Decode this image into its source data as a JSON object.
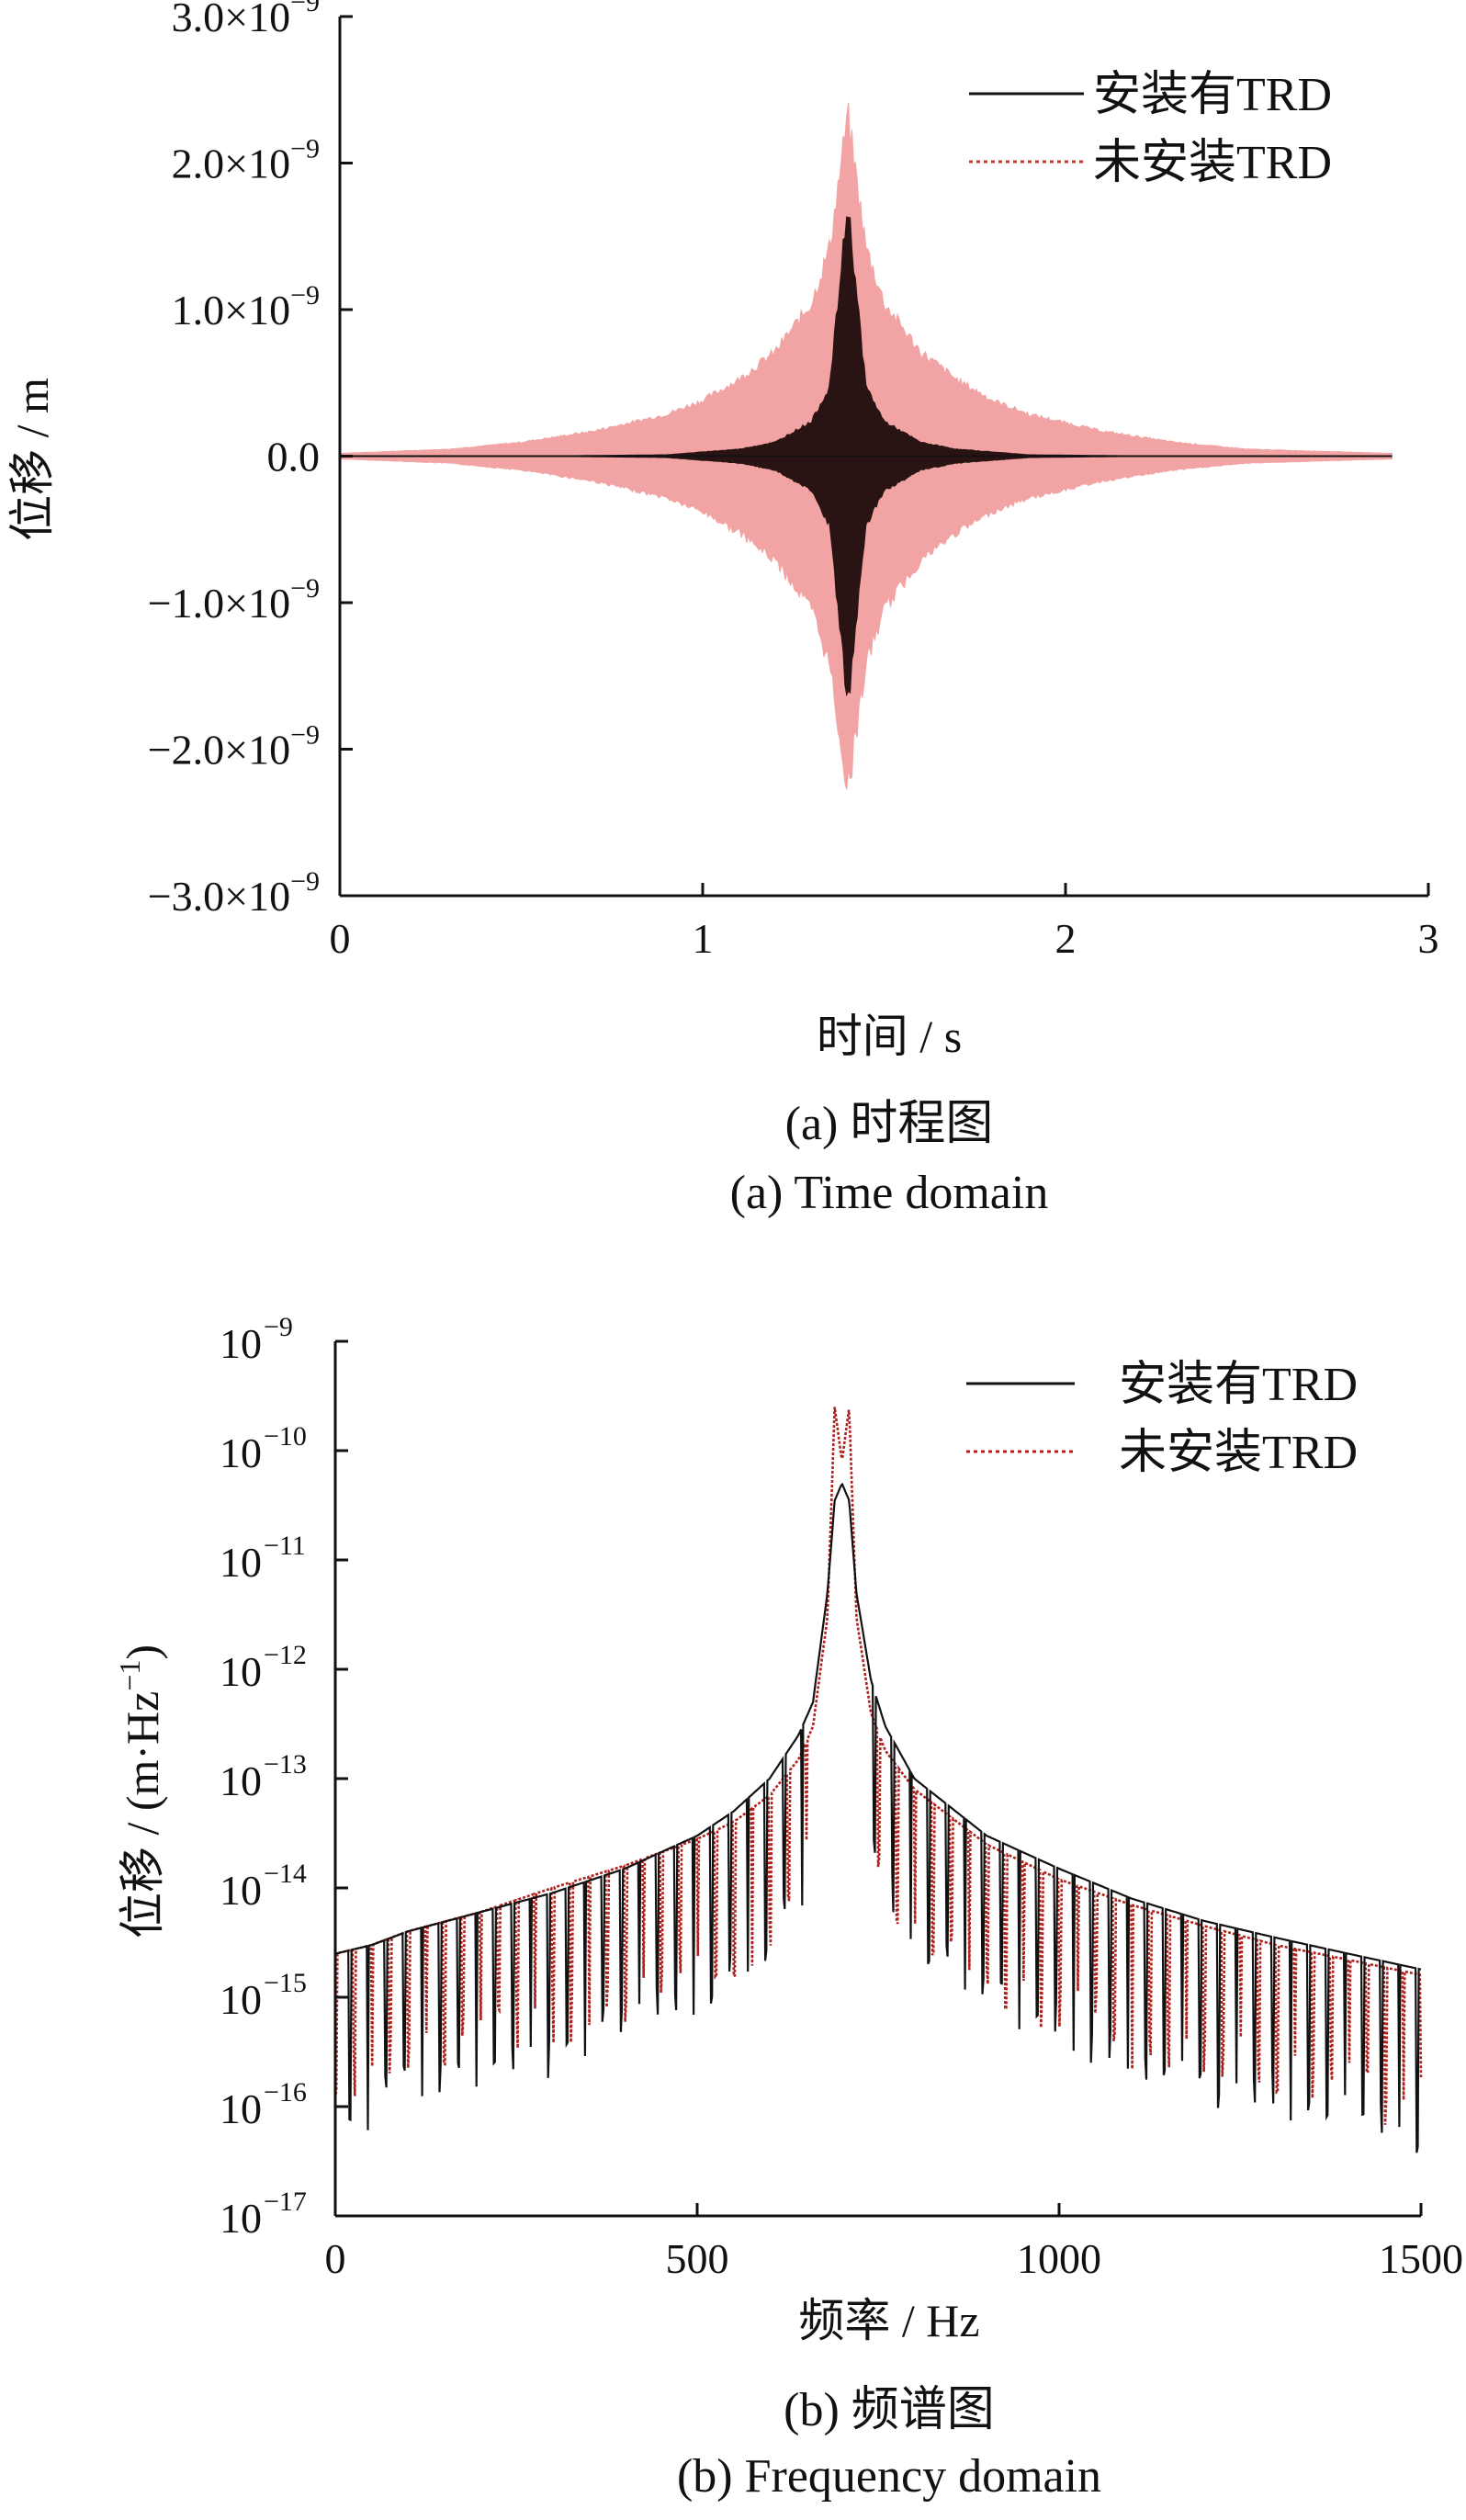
{
  "chart_data": [
    {
      "type": "line",
      "caption_cn": "(a)  时程图",
      "caption_en": "(a)  Time domain",
      "xlabel": "时间 / s",
      "ylabel": "位移 / m",
      "xlim": [
        0,
        3
      ],
      "ylim": [
        -3e-09,
        3e-09
      ],
      "x_ticks": [
        0,
        1,
        2,
        3
      ],
      "x_tick_labels": [
        "0",
        "1",
        "2",
        "3"
      ],
      "y_ticks": [
        3e-09,
        2e-09,
        1e-09,
        0,
        -1e-09,
        -2e-09,
        -3e-09
      ],
      "y_tick_labels": [
        "3.0×10",
        "2.0×10",
        "1.0×10",
        "0.0",
        "−1.0×10",
        "−2.0×10",
        "−3.0×10"
      ],
      "y_tick_exponents": [
        "−9",
        "−9",
        "−9",
        "",
        "−9",
        "−9",
        "−9"
      ],
      "legend_position": "top-right",
      "series": [
        {
          "name": "安装有TRD",
          "color": "#2a1413",
          "style": "solid",
          "envelope": {
            "x": [
              0.0,
              0.3,
              0.6,
              0.9,
              1.1,
              1.2,
              1.3,
              1.35,
              1.4,
              1.45,
              1.5,
              1.6,
              1.7,
              1.9,
              2.2,
              2.5,
              2.9
            ],
            "upper": [
              0.0,
              0.0,
              2e-12,
              1e-11,
              5e-11,
              1e-10,
              2.5e-10,
              5e-10,
              1.82e-09,
              5e-10,
              2.5e-10,
              1e-10,
              5e-11,
              1e-11,
              2e-12,
              0.0,
              0.0
            ],
            "lower": [
              0.0,
              0.0,
              -2e-12,
              -1e-11,
              -5e-11,
              -1e-10,
              -2.5e-10,
              -5e-10,
              -1.82e-09,
              -5e-10,
              -2.5e-10,
              -1e-10,
              -5e-11,
              -1e-11,
              -2e-12,
              0.0,
              0.0
            ]
          }
        },
        {
          "name": "未安装TRD",
          "color": "#f2a3a3",
          "style": "dotted",
          "envelope": {
            "x": [
              0.0,
              0.3,
              0.5,
              0.7,
              0.9,
              1.0,
              1.1,
              1.2,
              1.3,
              1.35,
              1.4,
              1.45,
              1.5,
              1.6,
              1.7,
              1.8,
              1.9,
              2.1,
              2.3,
              2.5,
              2.9
            ],
            "upper": [
              2e-11,
              5e-11,
              1e-10,
              1.8e-10,
              3e-10,
              4e-10,
              5.5e-10,
              7.5e-10,
              1.1e-09,
              1.5e-09,
              2.45e-09,
              1.5e-09,
              1.1e-09,
              7.5e-10,
              5.5e-10,
              4e-10,
              3e-10,
              1.8e-10,
              1e-10,
              5e-11,
              2e-11
            ],
            "lower": [
              -2e-11,
              -5e-11,
              -1e-10,
              -1.8e-10,
              -3e-10,
              -4e-10,
              -5.5e-10,
              -7.5e-10,
              -1.1e-09,
              -1.5e-09,
              -2.4e-09,
              -1.5e-09,
              -1.1e-09,
              -7.5e-10,
              -5.5e-10,
              -4e-10,
              -3e-10,
              -1.8e-10,
              -1e-10,
              -5e-11,
              -2e-11
            ]
          }
        }
      ]
    },
    {
      "type": "line",
      "yscale": "log",
      "caption_cn": "(b)  频谱图",
      "caption_en": "(b)  Frequency domain",
      "xlabel": "频率 / Hz",
      "ylabel": "位移 / (m·Hz",
      "ylabel_exponent": "−1",
      "ylabel_close": ")",
      "xlim": [
        0,
        1500
      ],
      "ylim": [
        1e-17,
        1e-09
      ],
      "x_ticks": [
        0,
        500,
        1000,
        1500
      ],
      "x_tick_labels": [
        "0",
        "500",
        "1000",
        "1500"
      ],
      "y_ticks": [
        1e-09,
        1e-10,
        1e-11,
        1e-12,
        1e-13,
        1e-14,
        1e-15,
        1e-16,
        1e-17
      ],
      "y_tick_labels": [
        "10",
        "10",
        "10",
        "10",
        "10",
        "10",
        "10",
        "10",
        "10"
      ],
      "y_tick_exponents": [
        "−9",
        "−10",
        "−11",
        "−12",
        "−13",
        "−14",
        "−15",
        "−16",
        "−17"
      ],
      "legend_position": "top-right",
      "series": [
        {
          "name": "安装有TRD",
          "color": "#111111",
          "style": "solid",
          "x": [
            0,
            50,
            100,
            200,
            300,
            400,
            500,
            550,
            600,
            640,
            660,
            680,
            690,
            700,
            710,
            720,
            740,
            760,
            800,
            900,
            1000,
            1100,
            1200,
            1300,
            1400,
            1500
          ],
          "y": [
            2.5e-15,
            3e-15,
            4e-15,
            6e-15,
            9e-15,
            1.5e-14,
            3e-14,
            5e-14,
            1e-13,
            2.5e-13,
            5e-13,
            5e-12,
            3.5e-11,
            5e-11,
            3.5e-11,
            5e-12,
            8e-13,
            3e-13,
            1e-13,
            3e-14,
            1.5e-14,
            8e-15,
            5e-15,
            3.5e-15,
            2.5e-15,
            1.8e-15
          ]
        },
        {
          "name": "未安装TRD",
          "color": "#b0201c",
          "style": "dotted",
          "x": [
            0,
            50,
            100,
            200,
            300,
            400,
            500,
            550,
            600,
            640,
            660,
            680,
            690,
            700,
            710,
            720,
            740,
            760,
            800,
            900,
            1000,
            1100,
            1200,
            1300,
            1400,
            1500
          ],
          "y": [
            2.5e-15,
            3e-15,
            4e-15,
            6e-15,
            1e-14,
            1.6e-14,
            2.8e-14,
            4e-14,
            7e-14,
            1.5e-13,
            3e-13,
            3e-12,
            2.5e-10,
            8e-11,
            2.5e-10,
            3e-12,
            4e-13,
            1.8e-13,
            8e-14,
            2.5e-14,
            1.2e-14,
            7e-15,
            4.5e-15,
            3e-15,
            2.2e-15,
            1.6e-15
          ]
        }
      ]
    }
  ]
}
